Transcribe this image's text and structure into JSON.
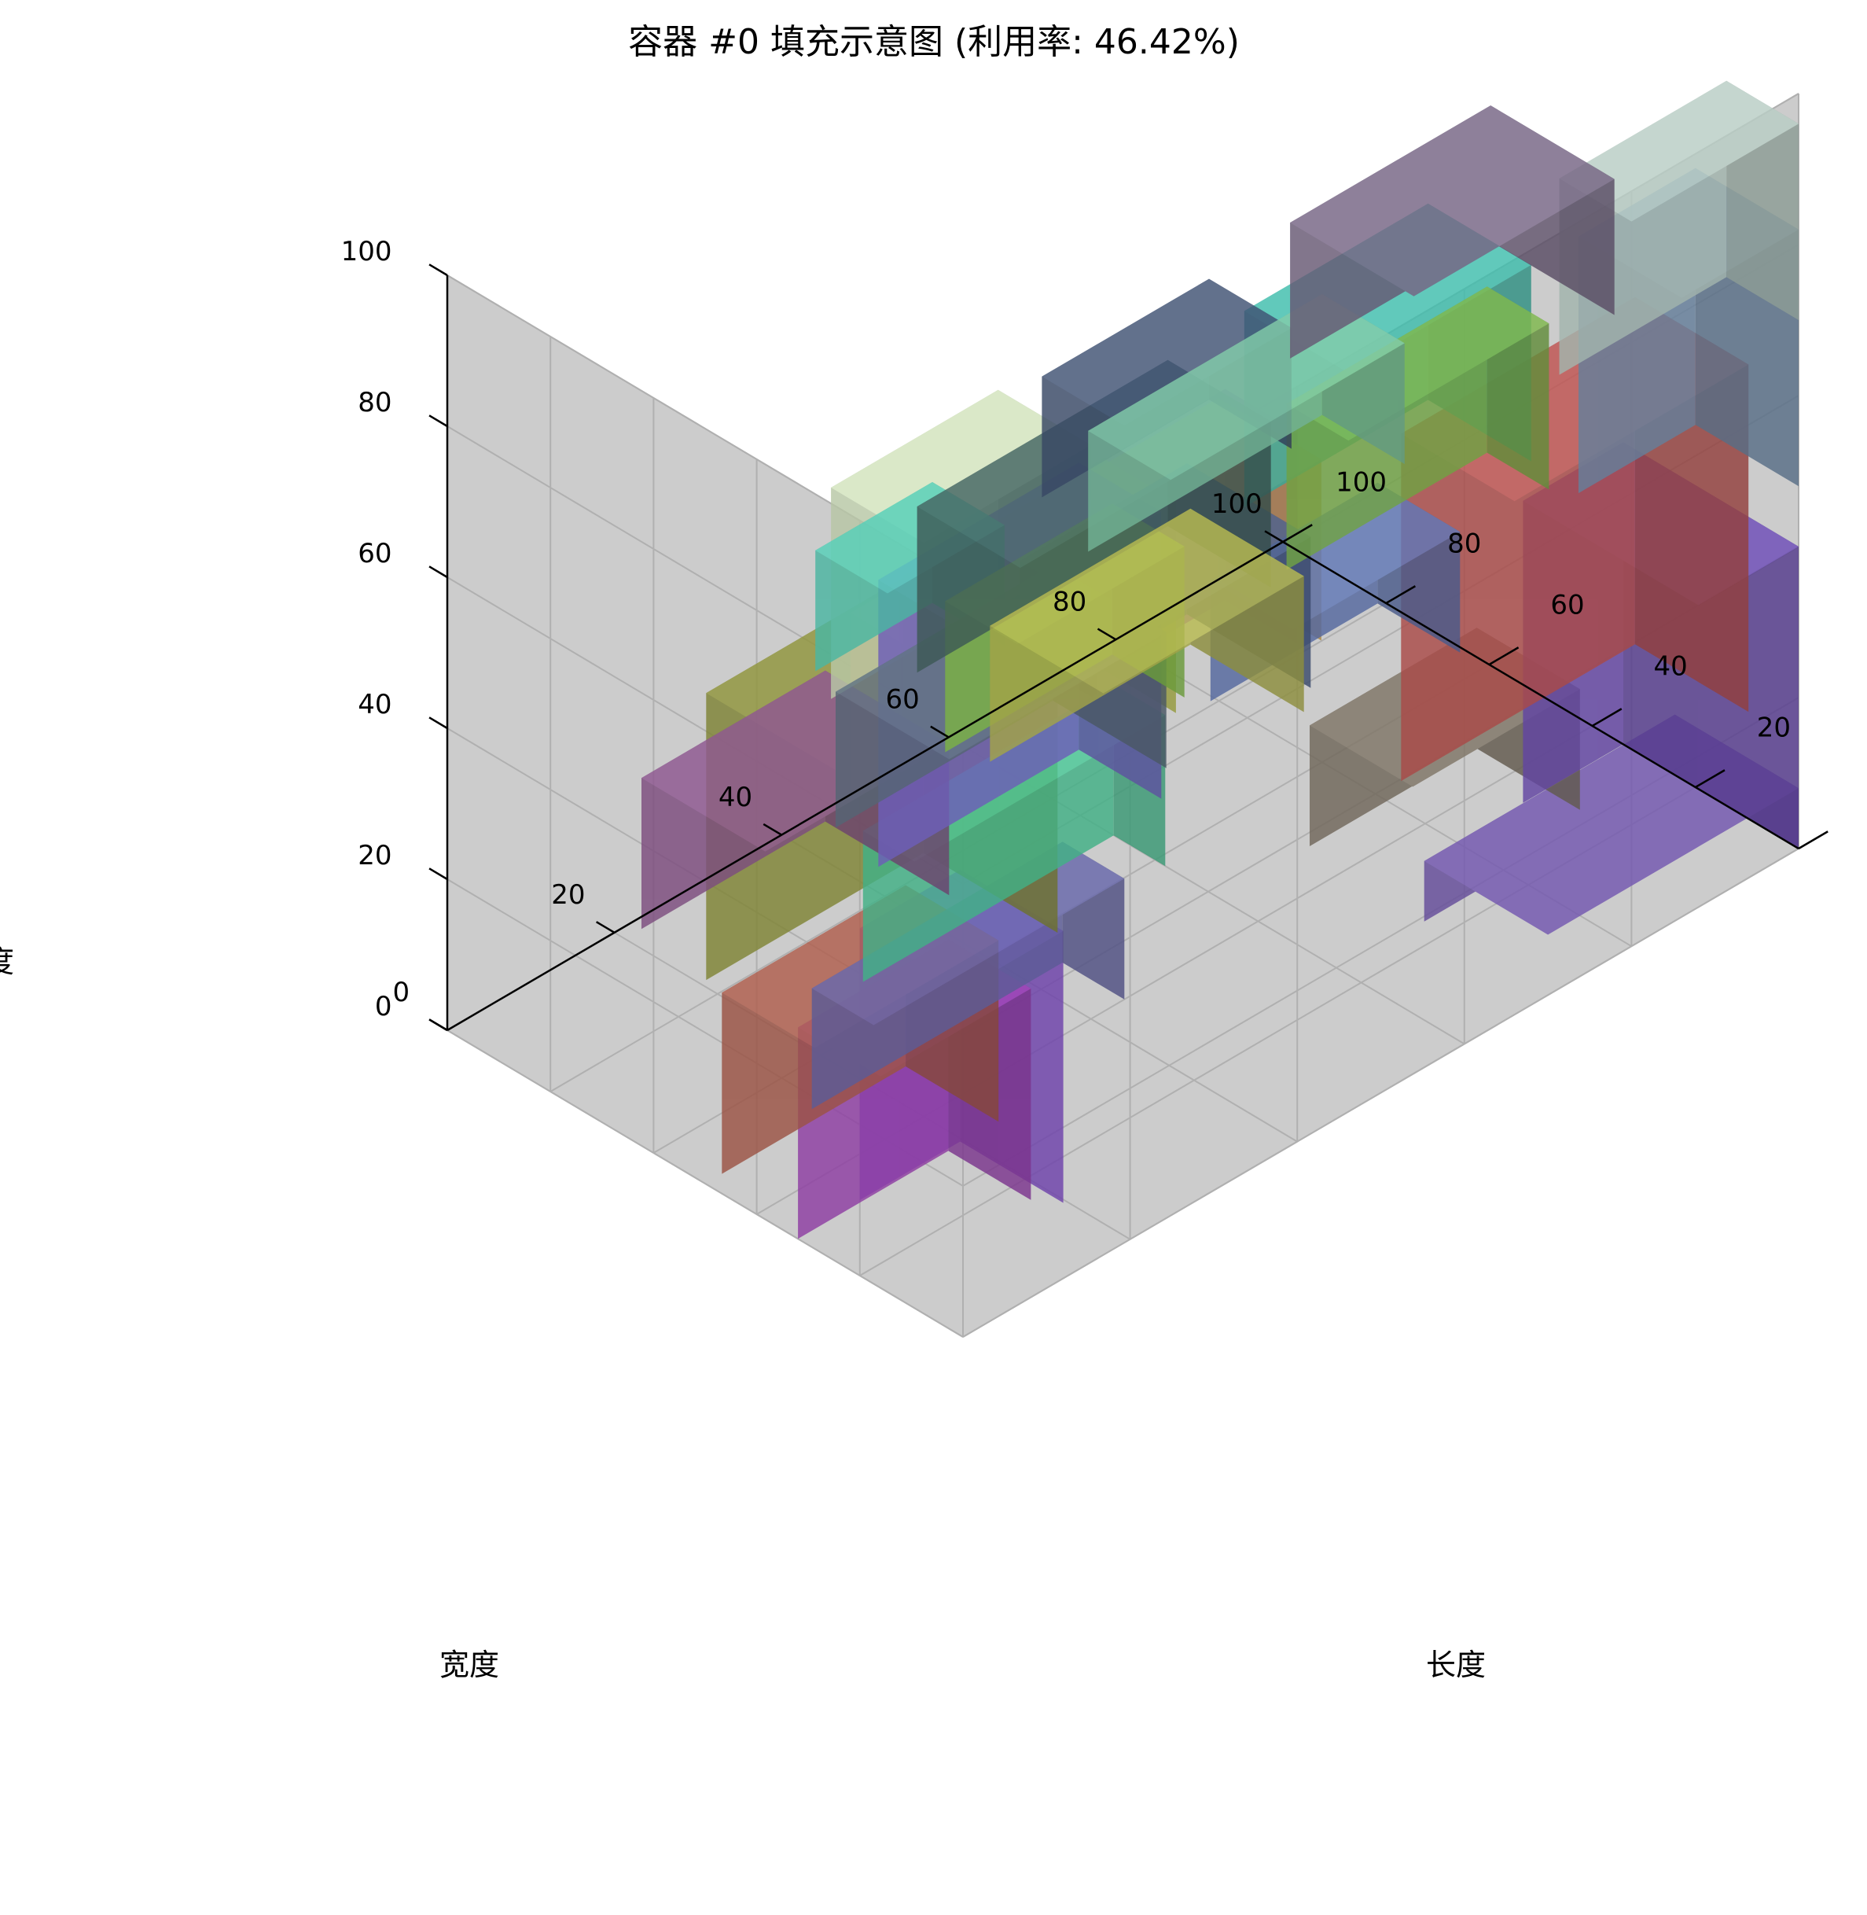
{
  "chart_data": {
    "type": "3d-bar",
    "title": "容器 #0 填充示意图 (利用率: 46.42%)",
    "xlabel": "长度",
    "ylabel": "宽度",
    "zlabel": "高度",
    "xlim": [
      0,
      100
    ],
    "ylim": [
      0,
      100
    ],
    "zlim": [
      0,
      100
    ],
    "x_ticks": [
      "0",
      "20",
      "40",
      "60",
      "80",
      "100"
    ],
    "y_ticks": [
      "0",
      "20",
      "40",
      "60",
      "80",
      "100"
    ],
    "z_ticks": [
      "0",
      "20",
      "40",
      "60",
      "80",
      "100"
    ],
    "grid": true,
    "pane_color": "#cccccc",
    "boxes": [
      {
        "x": 80,
        "y": 0,
        "z": 70,
        "dx": 20,
        "dy": 14,
        "dz": 26,
        "color": "#b0c4bc"
      },
      {
        "x": 46,
        "y": 0,
        "z": 72,
        "dx": 22,
        "dy": 20,
        "dz": 26,
        "color": "#3cb5a5"
      },
      {
        "x": 4,
        "y": 0,
        "z": 66,
        "dx": 36,
        "dy": 14,
        "dz": 28,
        "color": "#a646d6"
      },
      {
        "x": 0,
        "y": 0,
        "z": 74,
        "dx": 16,
        "dy": 12,
        "dz": 18,
        "color": "#614a6c"
      },
      {
        "x": 86,
        "y": 0,
        "z": 48,
        "dx": 14,
        "dy": 20,
        "dz": 34,
        "color": "#6e8aa8"
      },
      {
        "x": 56,
        "y": 16,
        "z": 54,
        "dx": 24,
        "dy": 12,
        "dz": 22,
        "color": "#7ab04a"
      },
      {
        "x": 10,
        "y": 18,
        "z": 50,
        "dx": 44,
        "dy": 20,
        "dz": 24,
        "color": "#d3aa5a"
      },
      {
        "x": 0,
        "y": 0,
        "z": 10,
        "dx": 12,
        "dy": 20,
        "dz": 36,
        "color": "#8a52d6"
      },
      {
        "x": 88,
        "y": 0,
        "z": 0,
        "dx": 12,
        "dy": 34,
        "dz": 40,
        "color": "#6a4ab0"
      },
      {
        "x": 70,
        "y": 26,
        "z": 64,
        "dx": 24,
        "dy": 24,
        "dz": 18,
        "color": "#70607e"
      },
      {
        "x": 66,
        "y": 0,
        "z": 22,
        "dx": 28,
        "dy": 22,
        "dz": 46,
        "color": "#b8504e"
      },
      {
        "x": 20,
        "y": 30,
        "z": 42,
        "dx": 24,
        "dy": 14,
        "dz": 28,
        "color": "#bbc24e"
      },
      {
        "x": 20,
        "y": 40,
        "z": 48,
        "dx": 20,
        "dy": 18,
        "dz": 28,
        "color": "#c8d8b4"
      },
      {
        "x": 44,
        "y": 40,
        "z": 60,
        "dx": 20,
        "dy": 16,
        "dz": 16,
        "color": "#3d4e6e"
      },
      {
        "x": 52,
        "y": 44,
        "z": 46,
        "dx": 28,
        "dy": 16,
        "dz": 16,
        "color": "#7cc2a2"
      },
      {
        "x": 34,
        "y": 44,
        "z": 40,
        "dx": 30,
        "dy": 20,
        "dz": 22,
        "color": "#42615e"
      },
      {
        "x": 28,
        "y": 60,
        "z": 40,
        "dx": 14,
        "dy": 14,
        "dz": 16,
        "color": "#52c6b0"
      },
      {
        "x": 10,
        "y": 40,
        "z": 14,
        "dx": 26,
        "dy": 26,
        "dz": 38,
        "color": "#8a8f3a"
      },
      {
        "x": 0,
        "y": 16,
        "z": 0,
        "dx": 18,
        "dy": 16,
        "dz": 28,
        "color": "#9a42b0"
      },
      {
        "x": 60,
        "y": 10,
        "z": 14,
        "dx": 20,
        "dy": 20,
        "dz": 16,
        "color": "#7a7062"
      },
      {
        "x": 58,
        "y": 30,
        "z": 28,
        "dx": 20,
        "dy": 16,
        "dz": 16,
        "color": "#5c72ae"
      },
      {
        "x": 38,
        "y": 62,
        "z": 6,
        "dx": 24,
        "dy": 16,
        "dz": 38,
        "color": "#7666c8"
      },
      {
        "x": 50,
        "y": 46,
        "z": 22,
        "dx": 20,
        "dy": 24,
        "dz": 20,
        "color": "#4a5e88"
      },
      {
        "x": 46,
        "y": 64,
        "z": 16,
        "dx": 20,
        "dy": 14,
        "dz": 20,
        "color": "#86c24a"
      },
      {
        "x": 30,
        "y": 58,
        "z": 0,
        "dx": 30,
        "dy": 10,
        "dz": 20,
        "color": "#48c092"
      },
      {
        "x": 14,
        "y": 40,
        "z": 0,
        "dx": 30,
        "dy": 12,
        "dz": 16,
        "color": "#6464a4"
      },
      {
        "x": 2,
        "y": 32,
        "z": 0,
        "dx": 22,
        "dy": 18,
        "dz": 24,
        "color": "#a85a4a"
      },
      {
        "x": 60,
        "y": 70,
        "z": 0,
        "dx": 24,
        "dy": 22,
        "dz": 18,
        "color": "#b0b24e"
      },
      {
        "x": 44,
        "y": 74,
        "z": 0,
        "dx": 26,
        "dy": 22,
        "dz": 18,
        "color": "#5c6e7e"
      },
      {
        "x": 22,
        "y": 74,
        "z": 0,
        "dx": 22,
        "dy": 24,
        "dz": 20,
        "color": "#88548a"
      },
      {
        "x": 70,
        "y": 0,
        "z": 0,
        "dx": 30,
        "dy": 24,
        "dz": 8,
        "color": "#6e54a8"
      }
    ]
  }
}
